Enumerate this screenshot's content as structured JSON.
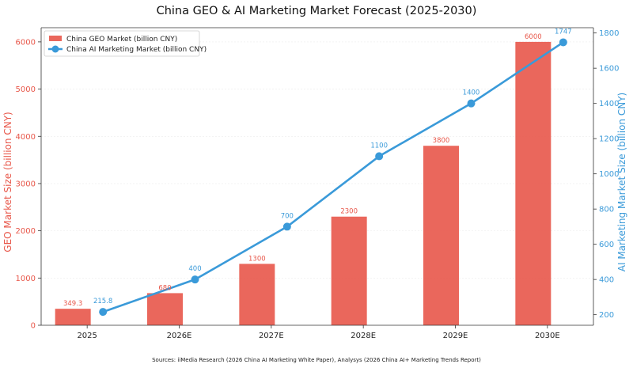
{
  "chart_data": {
    "type": "bar+line",
    "title": "China GEO & AI Marketing Market Forecast (2025-2030)",
    "categories": [
      "2025",
      "2026E",
      "2027E",
      "2028E",
      "2029E",
      "2030E"
    ],
    "series": [
      {
        "name": "China GEO Market (billion CNY)",
        "type": "bar",
        "axis": "left",
        "color": "#e8574a",
        "values": [
          349.3,
          680,
          1300,
          2300,
          3800,
          6000
        ],
        "labels": [
          "349.3",
          "680",
          "1300",
          "2300",
          "3800",
          "6000"
        ]
      },
      {
        "name": "China AI Marketing Market (billion CNY)",
        "type": "line",
        "axis": "right",
        "color": "#3a9ad9",
        "values": [
          215.8,
          400,
          700,
          1100,
          1400,
          1747
        ],
        "labels": [
          "215.8",
          "400",
          "700",
          "1100",
          "1400",
          "1747"
        ]
      }
    ],
    "y_left": {
      "label": "GEO Market Size (billion CNY)",
      "ylim": [
        0,
        6300
      ],
      "ticks": [
        0,
        1000,
        2000,
        3000,
        4000,
        5000,
        6000
      ],
      "color": "#e8574a"
    },
    "y_right": {
      "label": "AI Marketing Market Size (billion CNY)",
      "ylim": [
        140,
        1830
      ],
      "ticks": [
        200,
        400,
        600,
        800,
        1000,
        1200,
        1400,
        1600,
        1800
      ],
      "color": "#3a9ad9"
    },
    "grid": true,
    "legend_position": "top-left",
    "source": "Sources: iiMedia Research (2026 China AI Marketing White Paper), Analysys (2026 China AI+ Marketing Trends Report)"
  }
}
